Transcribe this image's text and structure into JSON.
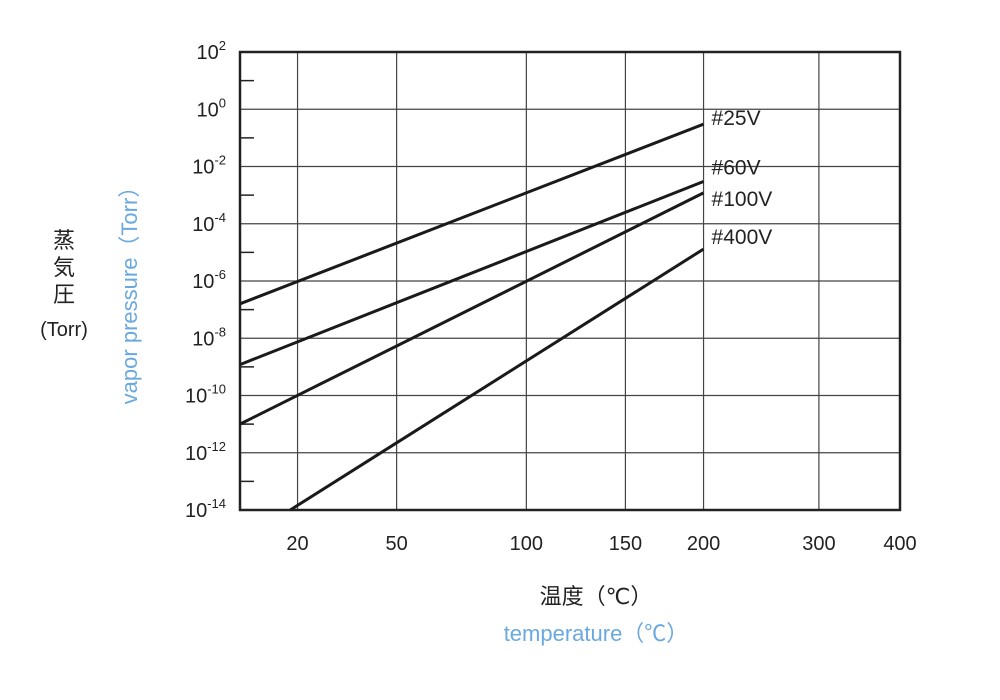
{
  "chart_data": {
    "type": "line",
    "x_scale": "reciprocal (1/K)",
    "y_scale": "log",
    "grid": true,
    "legend": "inline labels at right end of lines",
    "accent_color": "#6aa9e0",
    "x_ticks": [
      20,
      50,
      100,
      150,
      200,
      300,
      400
    ],
    "x_tick_labels": [
      "20",
      "50",
      "100",
      "150",
      "200",
      "300",
      "400"
    ],
    "y_ticks": [
      {
        "base": "10",
        "exp": "2"
      },
      {
        "base": "10",
        "exp": "0"
      },
      {
        "base": "10",
        "exp": "-2"
      },
      {
        "base": "10",
        "exp": "-4"
      },
      {
        "base": "10",
        "exp": "-6"
      },
      {
        "base": "10",
        "exp": "-8"
      },
      {
        "base": "10",
        "exp": "-10"
      },
      {
        "base": "10",
        "exp": "-12"
      },
      {
        "base": "10",
        "exp": "-14"
      }
    ],
    "xlim": [
      5,
      400
    ],
    "ylim": [
      1e-14,
      100
    ],
    "xlabel_jp": "温度（℃）",
    "xlabel_en": "temperature（℃）",
    "ylabel_jp": [
      "蒸",
      "気",
      "圧"
    ],
    "ylabel_unit": "(Torr)",
    "ylabel_en": "vapor pressure（Torr）",
    "series": [
      {
        "name": "#25V",
        "x": [
          5,
          200
        ],
        "y": [
          1.6e-07,
          0.3
        ]
      },
      {
        "name": "#60V",
        "x": [
          5,
          200
        ],
        "y": [
          1.2e-09,
          0.003
        ]
      },
      {
        "name": "#100V",
        "x": [
          5,
          200
        ],
        "y": [
          1e-11,
          0.0012
        ]
      },
      {
        "name": "#400V",
        "x": [
          18,
          200
        ],
        "y": [
          1e-14,
          1.3e-05
        ]
      }
    ]
  }
}
